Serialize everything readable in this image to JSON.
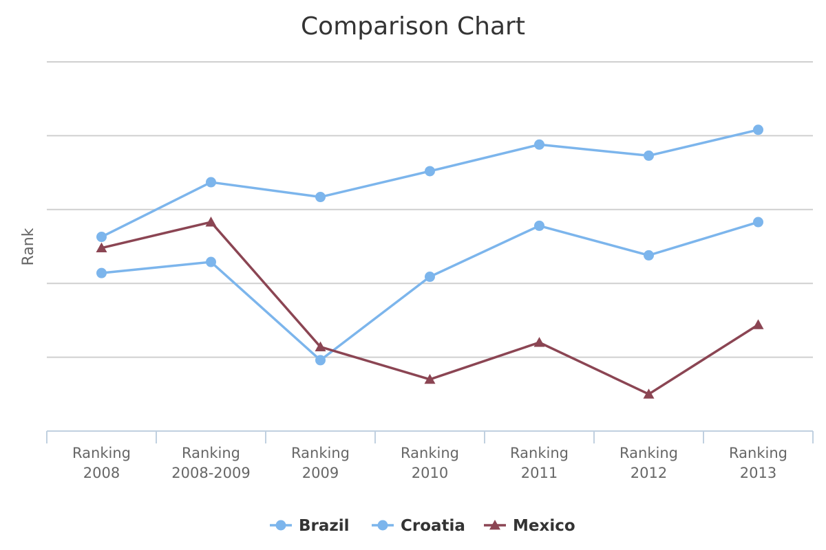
{
  "chart_data": {
    "type": "line",
    "title": "Comparison Chart",
    "xlabel": "",
    "ylabel": "Rank",
    "categories": [
      [
        "Ranking",
        "2008"
      ],
      [
        "Ranking",
        "2008-2009"
      ],
      [
        "Ranking",
        "2009"
      ],
      [
        "Ranking",
        "2010"
      ],
      [
        "Ranking",
        "2011"
      ],
      [
        "Ranking",
        "2012"
      ],
      [
        "Ranking",
        "2013"
      ]
    ],
    "ylim": [
      0,
      5
    ],
    "y_tick_labels_visible": false,
    "grid": true,
    "legend": "bottom",
    "series": [
      {
        "name": "Brazil",
        "color": "#7cb5ec",
        "marker": "circle",
        "values": [
          2.63,
          3.37,
          3.17,
          3.52,
          3.88,
          3.73,
          4.08
        ]
      },
      {
        "name": "Croatia",
        "color": "#7cb5ec",
        "marker": "circle",
        "values": [
          2.14,
          2.29,
          0.96,
          2.09,
          2.78,
          2.38,
          2.83
        ]
      },
      {
        "name": "Mexico",
        "color": "#8b4553",
        "marker": "triangle",
        "values": [
          2.48,
          2.83,
          1.14,
          0.7,
          1.2,
          0.5,
          1.44
        ]
      }
    ]
  }
}
